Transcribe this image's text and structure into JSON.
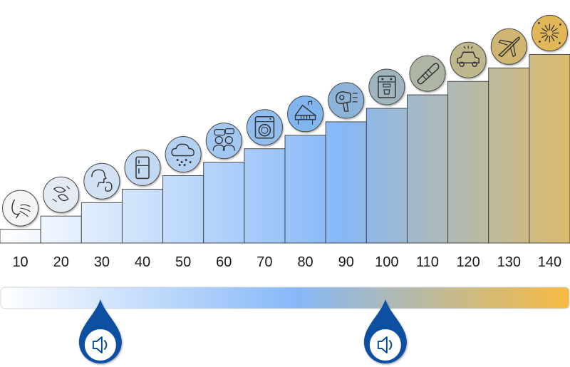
{
  "chart_data": {
    "type": "bar",
    "categories": [
      "10",
      "20",
      "30",
      "40",
      "50",
      "60",
      "70",
      "80",
      "90",
      "100",
      "110",
      "120",
      "130",
      "140"
    ],
    "values": [
      10,
      20,
      30,
      40,
      50,
      60,
      70,
      80,
      90,
      100,
      110,
      120,
      130,
      140
    ],
    "ylim": [
      0,
      140
    ],
    "icons": [
      "breath-icon",
      "rustling-leaves-icon",
      "whisper-icon",
      "refrigerator-icon",
      "rain-cloud-icon",
      "conversation-icon",
      "washing-machine-icon",
      "piano-icon",
      "hair-dryer-icon",
      "coffee-machine-icon",
      "chainsaw-icon",
      "car-horn-icon",
      "jet-plane-icon",
      "fireworks-icon"
    ]
  },
  "scale_bar": {
    "colors": [
      "#ffffff",
      "#86b8f7",
      "#f7bb40"
    ]
  },
  "markers": [
    {
      "name": "sound-marker-safe",
      "icon": "speaker-icon",
      "value": 30
    },
    {
      "name": "sound-marker-danger",
      "icon": "speaker-icon",
      "value": 100
    }
  ],
  "colors": {
    "bar_start": "#ffffff",
    "bar_mid": "#86b8f7",
    "bar_end": "#d9b96a",
    "circle_start": "#f4f4f4",
    "circle_mid": "#7fb4ee",
    "circle_end": "#e2b758",
    "marker": "#0a4fa0"
  }
}
